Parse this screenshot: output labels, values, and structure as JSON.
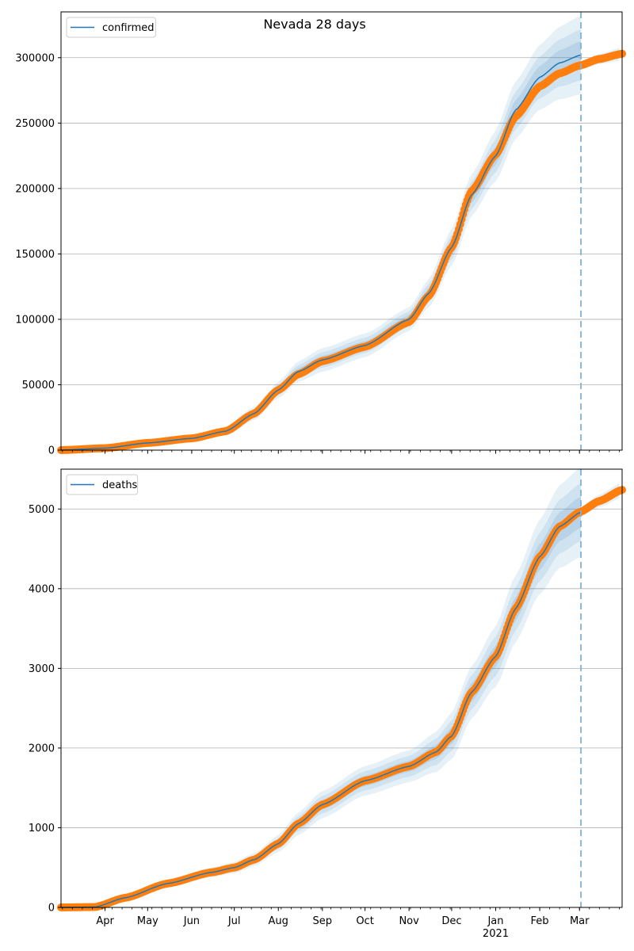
{
  "figure": {
    "title": "Nevada 28 days"
  },
  "colors": {
    "model": "#1f77b4",
    "observed": "#ff7f0e",
    "grid": "#b0b0b0",
    "cutoff": "#7fb2d8"
  },
  "x_axis": {
    "start": "2020-03-01",
    "end": "2021-03-31",
    "cutoff": "2021-03-02",
    "months": [
      {
        "label": "Apr",
        "date": "2020-04-01"
      },
      {
        "label": "May",
        "date": "2020-05-01"
      },
      {
        "label": "Jun",
        "date": "2020-06-01"
      },
      {
        "label": "Jul",
        "date": "2020-07-01"
      },
      {
        "label": "Aug",
        "date": "2020-08-01"
      },
      {
        "label": "Sep",
        "date": "2020-09-01"
      },
      {
        "label": "Oct",
        "date": "2020-10-01"
      },
      {
        "label": "Nov",
        "date": "2020-11-01"
      },
      {
        "label": "Dec",
        "date": "2020-12-01"
      },
      {
        "label": "Jan",
        "date": "2021-01-01"
      },
      {
        "label": "Feb",
        "date": "2021-02-01"
      },
      {
        "label": "Mar",
        "date": "2021-03-01"
      }
    ],
    "year_label": "2021"
  },
  "chart_data": [
    {
      "type": "line",
      "title": "Nevada 28 days",
      "legend": {
        "label": "confirmed",
        "placement": "top-left"
      },
      "ylim": [
        0,
        335000
      ],
      "yticks": [
        0,
        50000,
        100000,
        150000,
        200000,
        250000,
        300000
      ],
      "ytick_labels": [
        "0",
        "50000",
        "100000",
        "150000",
        "200000",
        "250000",
        "300000"
      ],
      "grid": "horizontal",
      "bands": true,
      "model_anchors": [
        [
          "2020-03-01",
          0
        ],
        [
          "2020-04-01",
          1500
        ],
        [
          "2020-05-01",
          5500
        ],
        [
          "2020-06-01",
          9000
        ],
        [
          "2020-06-25",
          14500
        ],
        [
          "2020-07-15",
          28000
        ],
        [
          "2020-08-01",
          46000
        ],
        [
          "2020-08-15",
          60000
        ],
        [
          "2020-09-01",
          69000
        ],
        [
          "2020-10-01",
          80000
        ],
        [
          "2020-11-01",
          100000
        ],
        [
          "2020-11-15",
          120000
        ],
        [
          "2020-12-01",
          155000
        ],
        [
          "2020-12-15",
          195000
        ],
        [
          "2021-01-01",
          225000
        ],
        [
          "2021-01-15",
          260000
        ],
        [
          "2021-02-01",
          285000
        ],
        [
          "2021-02-15",
          296000
        ],
        [
          "2021-03-02",
          302000
        ]
      ],
      "band_width_anchors": [
        [
          "2020-03-01",
          300
        ],
        [
          "2020-06-01",
          1500
        ],
        [
          "2020-07-15",
          5000
        ],
        [
          "2020-09-01",
          9000
        ],
        [
          "2020-11-01",
          9000
        ],
        [
          "2020-12-15",
          16000
        ],
        [
          "2021-01-15",
          22000
        ],
        [
          "2021-03-02",
          30000
        ]
      ],
      "observed_anchors": [
        [
          "2020-03-01",
          0
        ],
        [
          "2020-04-01",
          1500
        ],
        [
          "2020-05-01",
          5500
        ],
        [
          "2020-06-01",
          9000
        ],
        [
          "2020-06-25",
          14500
        ],
        [
          "2020-07-15",
          28000
        ],
        [
          "2020-08-01",
          46000
        ],
        [
          "2020-08-15",
          58000
        ],
        [
          "2020-09-01",
          68000
        ],
        [
          "2020-10-01",
          79000
        ],
        [
          "2020-11-01",
          98000
        ],
        [
          "2020-11-15",
          118000
        ],
        [
          "2020-12-01",
          155000
        ],
        [
          "2020-12-15",
          198000
        ],
        [
          "2021-01-01",
          226000
        ],
        [
          "2021-01-15",
          255000
        ],
        [
          "2021-02-01",
          278000
        ],
        [
          "2021-02-15",
          288000
        ],
        [
          "2021-03-01",
          294000
        ],
        [
          "2021-03-15",
          299000
        ],
        [
          "2021-03-31",
          303000
        ]
      ],
      "forecast_band": {
        "lower": 297000,
        "upper": 307000
      }
    },
    {
      "type": "line",
      "legend": {
        "label": "deaths",
        "placement": "top-left"
      },
      "ylim": [
        0,
        5500
      ],
      "yticks": [
        0,
        1000,
        2000,
        3000,
        4000,
        5000
      ],
      "ytick_labels": [
        "0",
        "1000",
        "2000",
        "3000",
        "4000",
        "5000"
      ],
      "grid": "horizontal",
      "bands": true,
      "model_anchors": [
        [
          "2020-03-01",
          0
        ],
        [
          "2020-03-25",
          5
        ],
        [
          "2020-04-15",
          120
        ],
        [
          "2020-05-15",
          300
        ],
        [
          "2020-06-15",
          440
        ],
        [
          "2020-07-01",
          500
        ],
        [
          "2020-07-15",
          600
        ],
        [
          "2020-08-01",
          800
        ],
        [
          "2020-08-15",
          1050
        ],
        [
          "2020-09-01",
          1290
        ],
        [
          "2020-10-01",
          1590
        ],
        [
          "2020-11-01",
          1770
        ],
        [
          "2020-11-20",
          1950
        ],
        [
          "2020-12-01",
          2150
        ],
        [
          "2020-12-15",
          2700
        ],
        [
          "2021-01-01",
          3150
        ],
        [
          "2021-01-15",
          3750
        ],
        [
          "2021-02-01",
          4400
        ],
        [
          "2021-02-15",
          4780
        ],
        [
          "2021-03-02",
          4960
        ]
      ],
      "band_width_anchors": [
        [
          "2020-03-01",
          10
        ],
        [
          "2020-04-15",
          40
        ],
        [
          "2020-06-15",
          60
        ],
        [
          "2020-07-15",
          80
        ],
        [
          "2020-09-01",
          170
        ],
        [
          "2020-11-01",
          200
        ],
        [
          "2020-12-15",
          330
        ],
        [
          "2021-01-15",
          420
        ],
        [
          "2021-03-02",
          560
        ]
      ],
      "observed_anchors": [
        [
          "2020-03-01",
          0
        ],
        [
          "2020-03-25",
          5
        ],
        [
          "2020-04-15",
          120
        ],
        [
          "2020-05-15",
          300
        ],
        [
          "2020-06-15",
          440
        ],
        [
          "2020-07-01",
          500
        ],
        [
          "2020-07-15",
          600
        ],
        [
          "2020-08-01",
          800
        ],
        [
          "2020-08-15",
          1050
        ],
        [
          "2020-09-01",
          1290
        ],
        [
          "2020-10-01",
          1590
        ],
        [
          "2020-11-01",
          1770
        ],
        [
          "2020-11-20",
          1950
        ],
        [
          "2020-12-01",
          2150
        ],
        [
          "2020-12-15",
          2700
        ],
        [
          "2021-01-01",
          3150
        ],
        [
          "2021-01-15",
          3750
        ],
        [
          "2021-02-01",
          4400
        ],
        [
          "2021-02-15",
          4780
        ],
        [
          "2021-03-01",
          4960
        ],
        [
          "2021-03-15",
          5100
        ],
        [
          "2021-03-31",
          5240
        ]
      ],
      "forecast_band": {
        "lower": 5150,
        "upper": 5350
      }
    }
  ]
}
